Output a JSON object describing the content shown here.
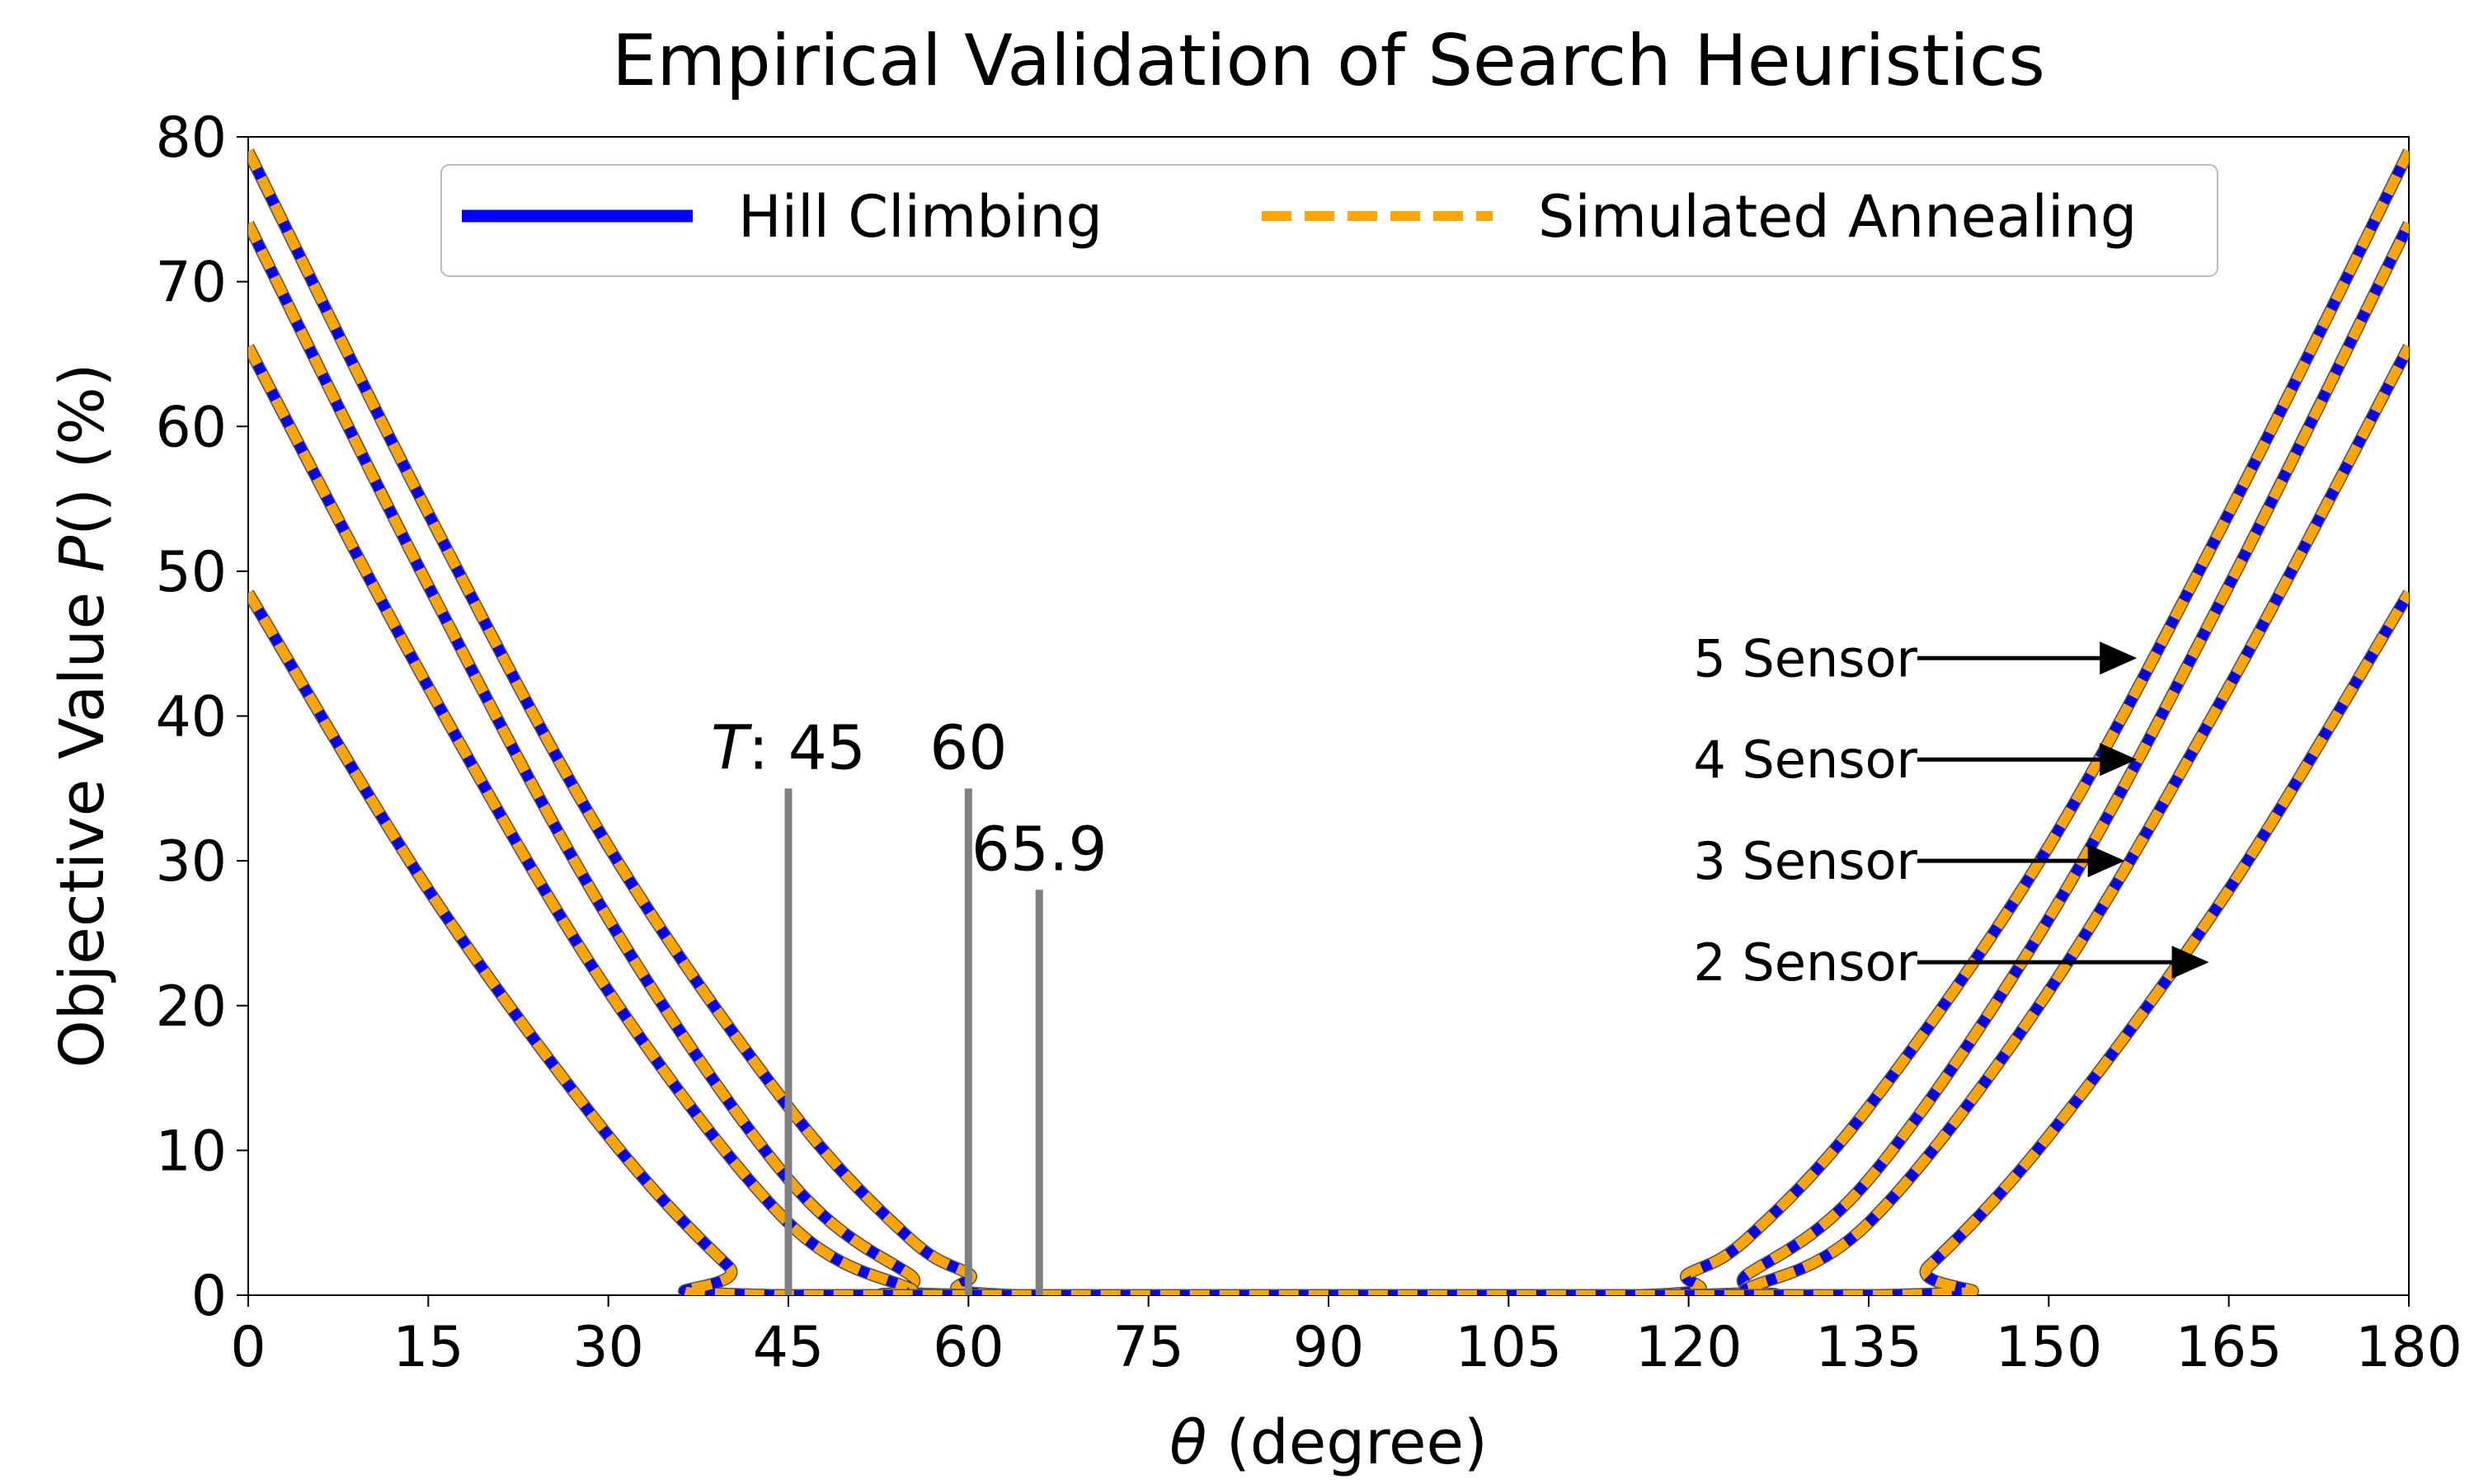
{
  "chart_data": {
    "type": "line",
    "title": "Empirical Validation of Search Heuristics",
    "xlabel_symbol": "θ",
    "xlabel_rest": " (degree)",
    "ylabel_pre": "Objective Value ",
    "ylabel_symbol": "P",
    "ylabel_post": "() (%)",
    "xlim": [
      0,
      180
    ],
    "ylim": [
      0,
      80
    ],
    "xticks": [
      "0",
      "15",
      "30",
      "45",
      "60",
      "75",
      "90",
      "105",
      "120",
      "135",
      "150",
      "165",
      "180"
    ],
    "yticks": [
      "0",
      "10",
      "20",
      "30",
      "40",
      "50",
      "60",
      "70",
      "80"
    ],
    "grid": false,
    "legend_position": "top-center",
    "legend": [
      {
        "label": "Hill Climbing",
        "color": "#0000ff",
        "style": "solid"
      },
      {
        "label": "Simulated Annealing",
        "color": "#ffa500",
        "style": "dashed"
      }
    ],
    "series": [
      {
        "sensors": 5,
        "points": [
          [
            0,
            79
          ],
          [
            15,
            54
          ],
          [
            30,
            31
          ],
          [
            45,
            13
          ],
          [
            55,
            4
          ],
          [
            60,
            1.5
          ],
          [
            64,
            0
          ],
          [
            116,
            0
          ],
          [
            120,
            1.5
          ],
          [
            125,
            4
          ],
          [
            135,
            13
          ],
          [
            150,
            31
          ],
          [
            165,
            54
          ],
          [
            180,
            79
          ]
        ]
      },
      {
        "sensors": 4,
        "points": [
          [
            0,
            74
          ],
          [
            15,
            49
          ],
          [
            30,
            26
          ],
          [
            45,
            8
          ],
          [
            55,
            1.5
          ],
          [
            60,
            0
          ],
          [
            120,
            0
          ],
          [
            125,
            1.5
          ],
          [
            135,
            8
          ],
          [
            150,
            26
          ],
          [
            165,
            49
          ],
          [
            180,
            74
          ]
        ]
      },
      {
        "sensors": 3,
        "points": [
          [
            0,
            65.5
          ],
          [
            15,
            42
          ],
          [
            30,
            21
          ],
          [
            45,
            5
          ],
          [
            55,
            0.5
          ],
          [
            58,
            0
          ],
          [
            122,
            0
          ],
          [
            125,
            0.5
          ],
          [
            135,
            5
          ],
          [
            150,
            21
          ],
          [
            165,
            42
          ],
          [
            180,
            65.5
          ]
        ]
      },
      {
        "sensors": 2,
        "points": [
          [
            0,
            48.5
          ],
          [
            15,
            28
          ],
          [
            30,
            11
          ],
          [
            40,
            2
          ],
          [
            44,
            0
          ],
          [
            136,
            0
          ],
          [
            140,
            2
          ],
          [
            150,
            11
          ],
          [
            165,
            28
          ],
          [
            180,
            48.5
          ]
        ]
      }
    ],
    "threshold_markers": [
      {
        "x": 45,
        "height": 35,
        "text_italic": "T",
        "text": ": 45"
      },
      {
        "x": 60,
        "height": 35,
        "text_italic": "",
        "text": "60"
      },
      {
        "x": 65.9,
        "height": 28,
        "text_italic": "",
        "text": "65.9"
      }
    ],
    "sensor_annotations": [
      {
        "text": "5 Sensor",
        "y": 44,
        "arrow_to_x": 157
      },
      {
        "text": "4 Sensor",
        "y": 37,
        "arrow_to_x": 157
      },
      {
        "text": "3 Sensor",
        "y": 30,
        "arrow_to_x": 156
      },
      {
        "text": "2 Sensor",
        "y": 23,
        "arrow_to_x": 163
      }
    ]
  }
}
